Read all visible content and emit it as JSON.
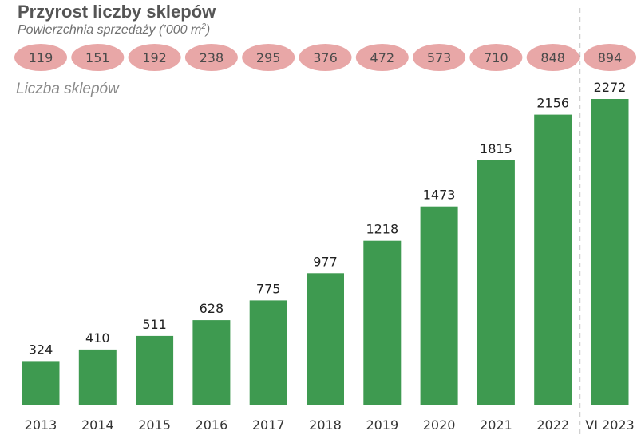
{
  "chart_data": {
    "type": "bar",
    "title": "Przyrost liczby sklepów",
    "subtitle": {
      "text": "Powierzchnia sprzedaży (’000 m",
      "superscript": "2",
      "suffix": ")"
    },
    "series_label": "Liczba sklepów",
    "categories": [
      "2013",
      "2014",
      "2015",
      "2016",
      "2017",
      "2018",
      "2019",
      "2020",
      "2021",
      "2022",
      "VI 2023"
    ],
    "values": [
      324,
      410,
      511,
      628,
      775,
      977,
      1218,
      1473,
      1815,
      2156,
      2272
    ],
    "sales_area": [
      119,
      151,
      192,
      238,
      295,
      376,
      472,
      573,
      710,
      848,
      894
    ],
    "ylim": [
      0,
      2500
    ],
    "grid": false,
    "xlabel": "",
    "ylabel": "",
    "divider_before_category": "VI 2023",
    "colors": {
      "bar": "#3e9a50",
      "oval": "#e8a7a7",
      "divider": "#8a8a8a",
      "axis": "#bdbdbd"
    }
  }
}
